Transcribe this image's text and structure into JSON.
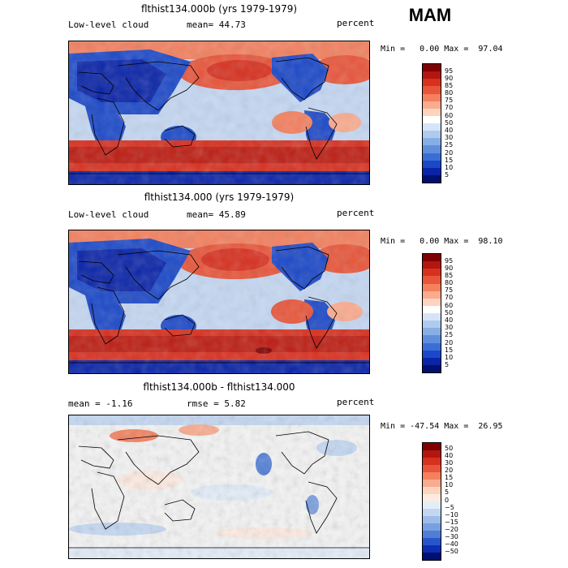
{
  "season": "MAM",
  "panels": [
    {
      "title": "flthist134.000b (yrs 1979-1979)",
      "left_label": "Low-level cloud",
      "center_label": "mean=  44.73",
      "units": "percent",
      "minmax": "Min =   0.00 Max =  97.04",
      "colorbar": [
        "95",
        "90",
        "85",
        "80",
        "75",
        "70",
        "60",
        "50",
        "40",
        "30",
        "25",
        "20",
        "15",
        "10",
        "5"
      ]
    },
    {
      "title": "flthist134.000 (yrs 1979-1979)",
      "left_label": "Low-level cloud",
      "center_label": "mean=  45.89",
      "units": "percent",
      "minmax": "Min =   0.00 Max =  98.10",
      "colorbar": [
        "95",
        "90",
        "85",
        "80",
        "75",
        "70",
        "60",
        "50",
        "40",
        "30",
        "25",
        "20",
        "15",
        "10",
        "5"
      ]
    },
    {
      "title": "flthist134.000b - flthist134.000",
      "left_label": "mean =  -1.16",
      "center_label": "rmse =   5.82",
      "units": "percent",
      "minmax": "Min = -47.54 Max =  26.95",
      "colorbar": [
        "50",
        "40",
        "30",
        "20",
        "15",
        "10",
        "5",
        "0",
        "−5",
        "−10",
        "−15",
        "−20",
        "−30",
        "−40",
        "−50"
      ]
    }
  ],
  "colors": {
    "abs_scale": [
      "#7f0000",
      "#b2160e",
      "#d7301f",
      "#e8553a",
      "#f3805f",
      "#fbab8e",
      "#fdd4bf",
      "#ffffff",
      "#d6e4f7",
      "#aecbef",
      "#87afe6",
      "#5f8fdc",
      "#3a6ed4",
      "#1b48c8",
      "#0a24a8",
      "#001070"
    ],
    "diff_scale": [
      "#7f0000",
      "#b2160e",
      "#d7301f",
      "#e8553a",
      "#f3805f",
      "#fbab8e",
      "#fdd4bf",
      "#fdebe1",
      "#e3edf9",
      "#c3d7f2",
      "#9dbde9",
      "#789fe0",
      "#4f7ed6",
      "#2955ca",
      "#0c2eb0",
      "#001070"
    ]
  }
}
